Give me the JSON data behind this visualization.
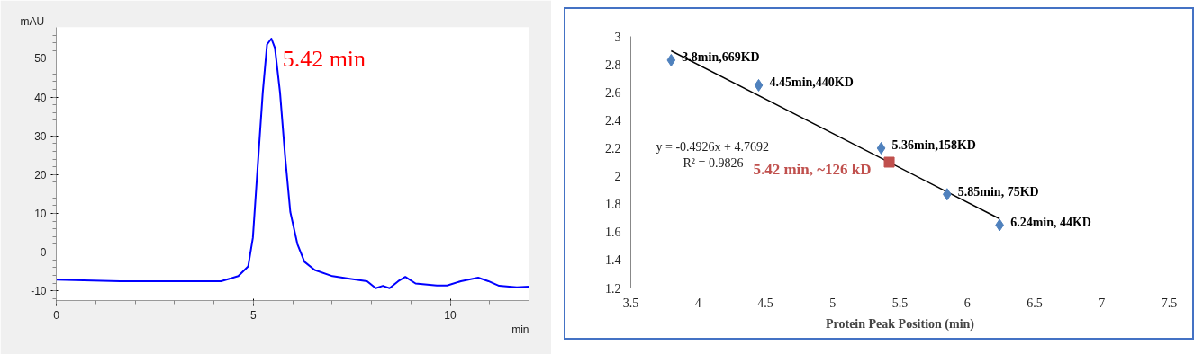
{
  "chart_data": [
    {
      "type": "line",
      "xlabel": "min",
      "ylabel": "mAU",
      "xlim": [
        0,
        12
      ],
      "ylim": [
        -12.5,
        58
      ],
      "xticks": [
        0,
        5,
        10
      ],
      "yticks": [
        -10,
        0,
        10,
        20,
        30,
        40,
        50
      ],
      "grid": false,
      "annotations": [
        {
          "text": "5.42 min",
          "x": 5.42,
          "y": 55
        }
      ],
      "x": [
        0,
        1.62,
        4.18,
        4.62,
        4.87,
        4.99,
        5.1,
        5.24,
        5.35,
        5.46,
        5.55,
        5.68,
        5.81,
        5.94,
        6.12,
        6.3,
        6.56,
        7.01,
        7.45,
        7.89,
        8.11,
        8.29,
        8.46,
        8.68,
        8.86,
        9.12,
        9.66,
        9.92,
        10.27,
        10.71,
        10.97,
        11.24,
        11.69,
        12.0
      ],
      "series": [
        {
          "color": "#0000ff",
          "values": [
            -7.1,
            -7.5,
            -7.5,
            -6.2,
            -3.7,
            3.7,
            20.3,
            41.1,
            53.6,
            55.1,
            52.7,
            41.1,
            24.5,
            10.4,
            2.1,
            -2.5,
            -4.6,
            -6.2,
            -6.9,
            -7.5,
            -9.3,
            -8.7,
            -9.3,
            -7.5,
            -6.4,
            -8.1,
            -8.6,
            -8.6,
            -7.5,
            -6.6,
            -7.5,
            -8.7,
            -9.1,
            -8.9
          ]
        }
      ]
    },
    {
      "type": "scatter",
      "xlabel": "Protein Peak Position (min)",
      "xlim": [
        3.5,
        7.5
      ],
      "ylim": [
        1.2,
        3
      ],
      "xticks": [
        3.5,
        4,
        4.5,
        5,
        5.5,
        6,
        6.5,
        7,
        7.5
      ],
      "yticks": [
        1.2,
        1.4,
        1.6,
        1.8,
        2,
        2.2,
        2.4,
        2.6,
        2.8,
        3
      ],
      "grid": false,
      "annotations": [
        "y = -0.4926x + 4.7692",
        "R² = 0.9826"
      ],
      "series": [
        {
          "type": "line",
          "marker": "none",
          "color": "#000000",
          "x": [
            3.8,
            6.24
          ],
          "values": [
            2.897,
            1.695
          ]
        },
        {
          "type": "scatter",
          "marker": "diamond",
          "color": "#4f81bd",
          "x": [
            3.8,
            4.45,
            5.36,
            5.85,
            6.24
          ],
          "values": [
            2.83,
            2.65,
            2.2,
            1.87,
            1.65
          ],
          "value_labels": [
            "3.8min,669KD",
            "4.45min,440KD",
            "5.36min,158KD",
            "5.85min, 75KD",
            "6.24min, 44KD"
          ]
        },
        {
          "type": "scatter",
          "marker": "square",
          "color": "#c0504d",
          "x": [
            5.42
          ],
          "values": [
            2.1
          ],
          "value_labels": [
            "5.42 min, ~126 kD"
          ]
        }
      ]
    }
  ]
}
